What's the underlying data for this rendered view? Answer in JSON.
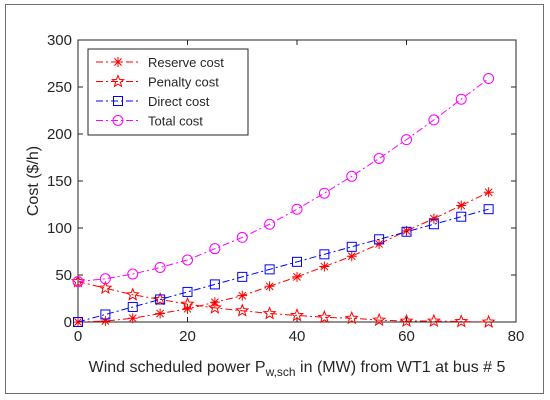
{
  "chart_data": {
    "type": "line",
    "xlabel_parts": {
      "prefix": "Wind scheduled power P",
      "subscript": "w,sch",
      "suffix": " in (MW) from WT1 at bus # 5"
    },
    "ylabel": "Cost ($/h)",
    "xlim": [
      0,
      80
    ],
    "ylim": [
      0,
      300
    ],
    "x_ticks": [
      0,
      20,
      40,
      60,
      80
    ],
    "y_ticks": [
      0,
      50,
      100,
      150,
      200,
      250,
      300
    ],
    "grid": false,
    "legend_position": "top-left",
    "x": [
      0,
      5,
      10,
      15,
      20,
      25,
      30,
      35,
      40,
      45,
      50,
      55,
      60,
      65,
      70,
      75
    ],
    "series": [
      {
        "name": "Reserve cost",
        "color": "#ff0000",
        "marker": "asterisk",
        "dash": "dashdot",
        "values": [
          0,
          1,
          4,
          9,
          14,
          21,
          28,
          38,
          48,
          59,
          70,
          83,
          97,
          110,
          124,
          138
        ]
      },
      {
        "name": "Penalty cost",
        "color": "#ff0000",
        "marker": "star",
        "dash": "dashdot",
        "values": [
          43,
          36,
          29,
          24,
          19,
          15,
          12,
          9,
          7,
          5,
          4,
          2,
          1,
          1,
          0.5,
          0
        ]
      },
      {
        "name": "Direct cost",
        "color": "#0000ff",
        "marker": "square",
        "dash": "dashdot",
        "values": [
          0,
          8,
          16,
          24,
          32,
          40,
          48,
          56,
          64,
          72,
          80,
          88,
          96,
          104,
          112,
          120
        ]
      },
      {
        "name": "Total cost",
        "color": "#ff00ff",
        "marker": "circle",
        "dash": "dashdot",
        "values": [
          43,
          46,
          51,
          58,
          66,
          78,
          90,
          104,
          120,
          137,
          155,
          174,
          194,
          215,
          237,
          259
        ]
      }
    ]
  }
}
